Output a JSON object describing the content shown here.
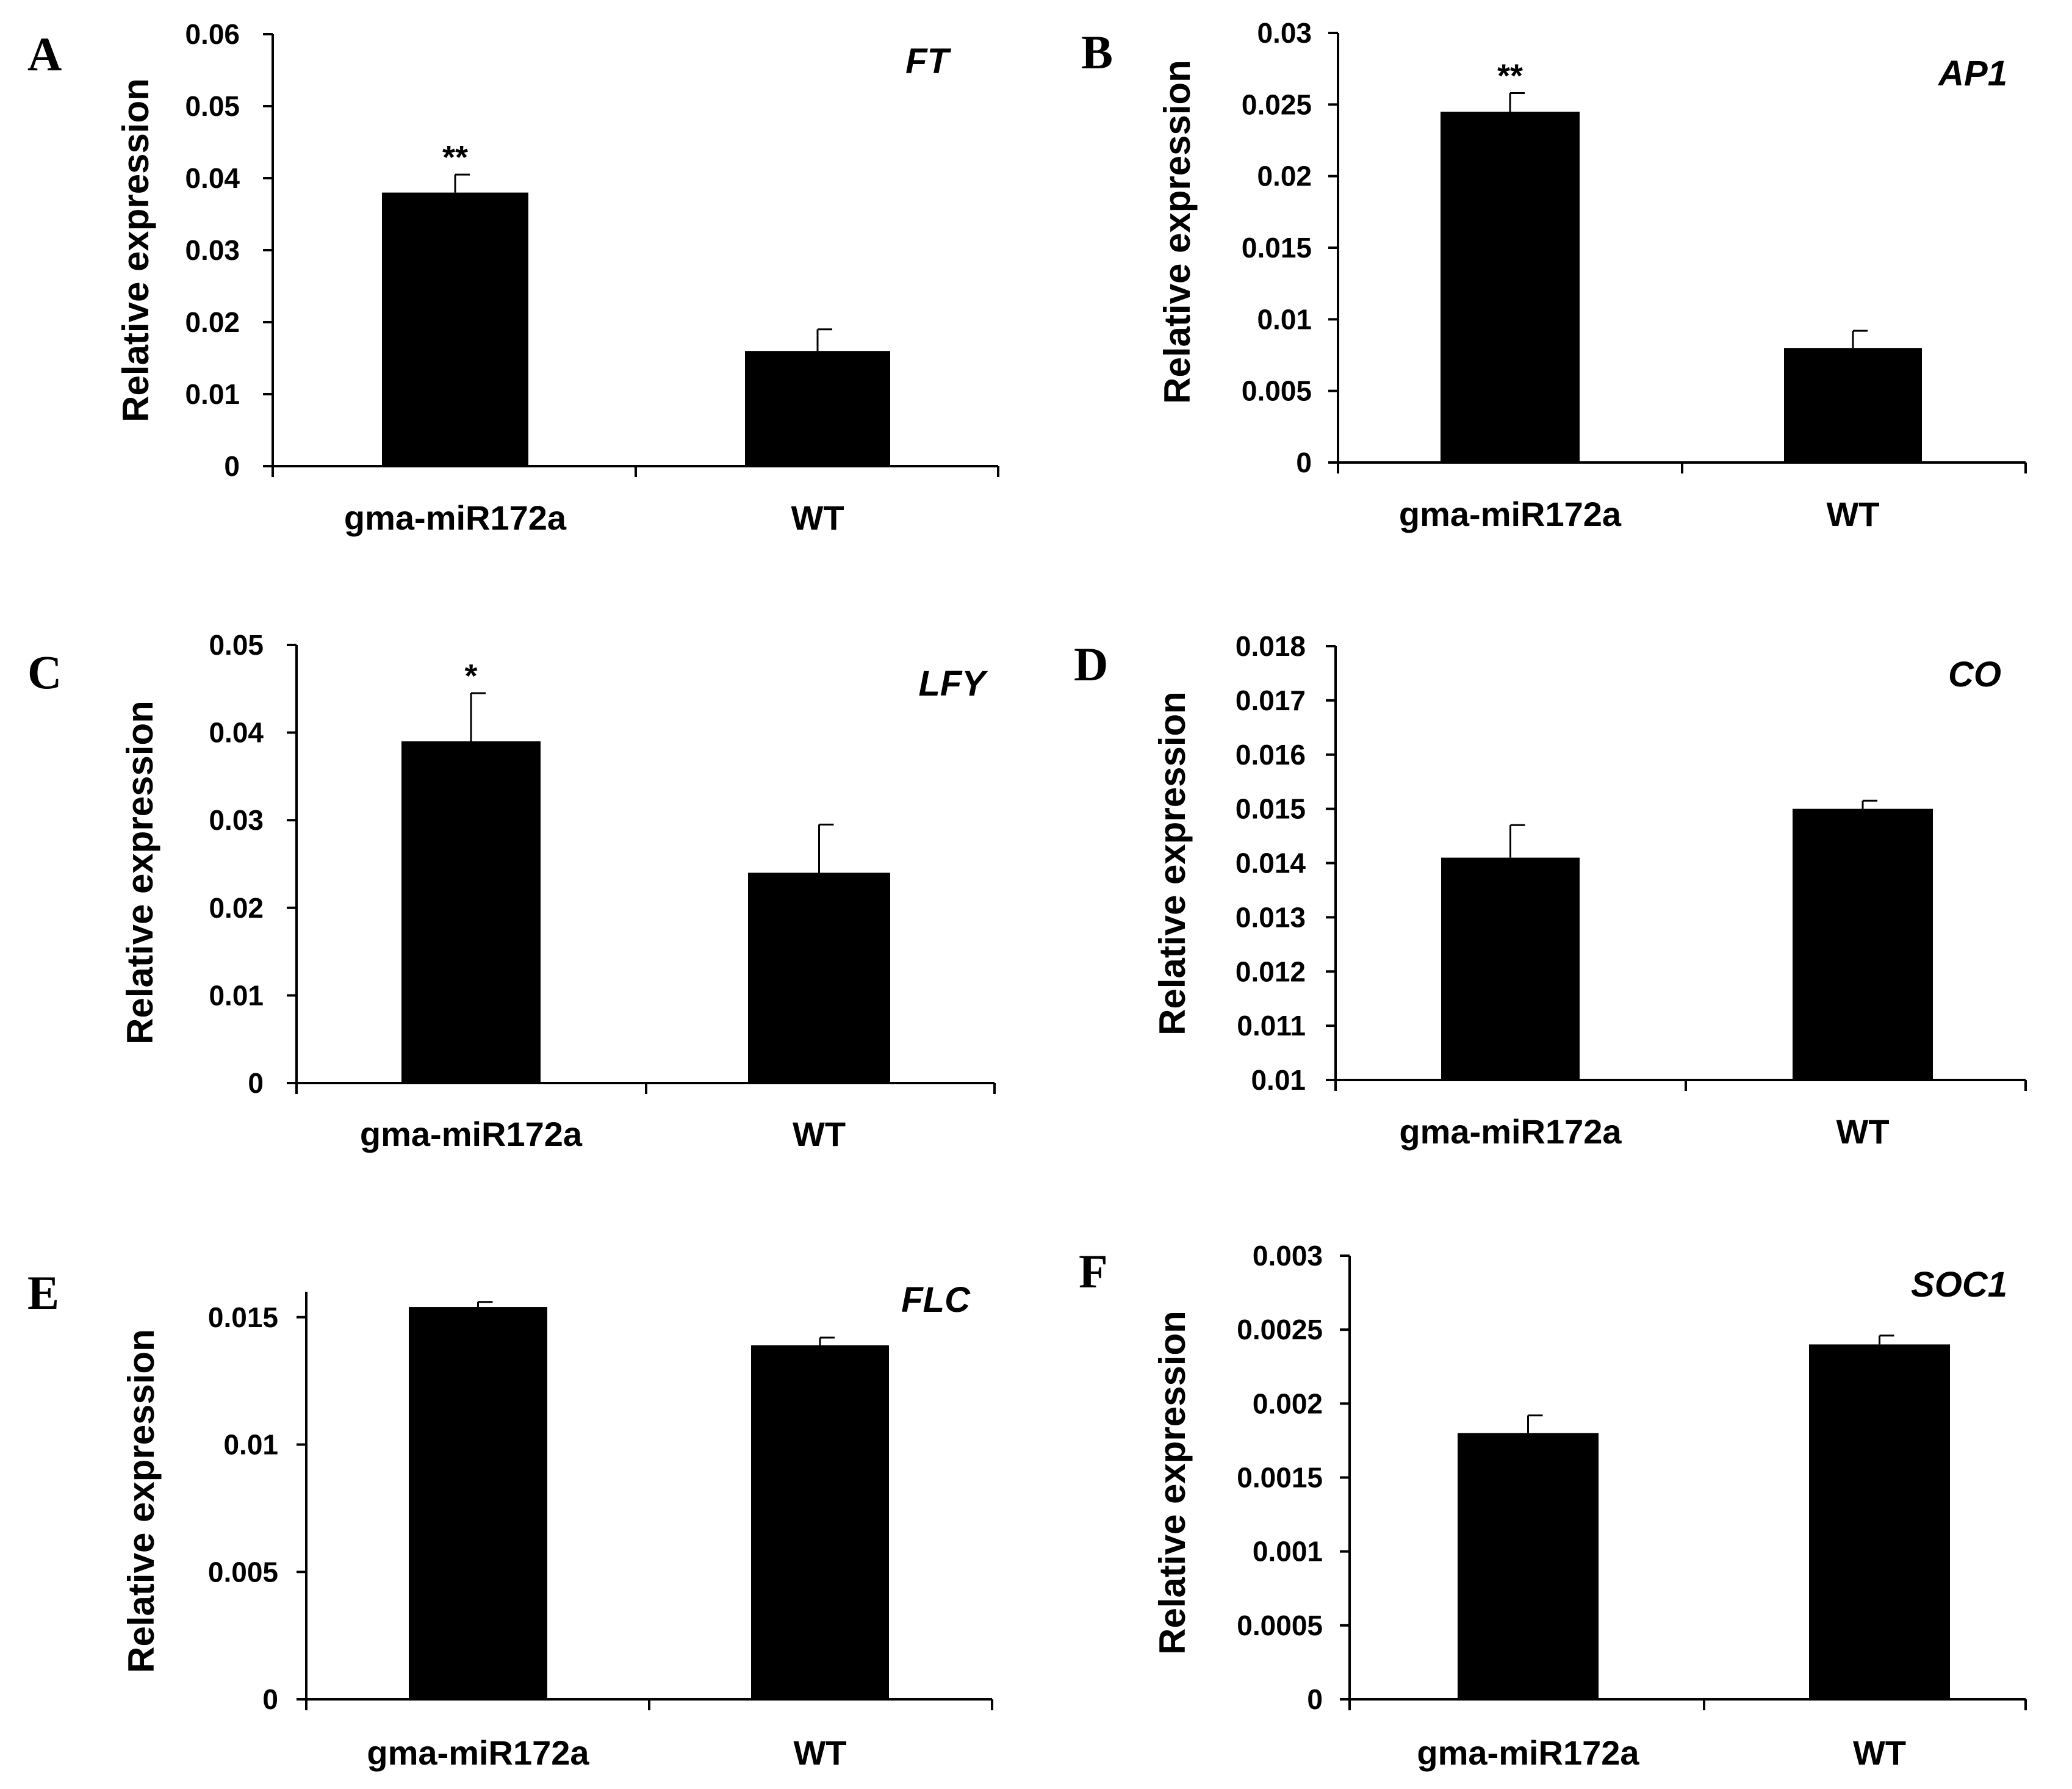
{
  "figure": {
    "background": "#ffffff",
    "bar_color": "#000000"
  },
  "chart_data": [
    {
      "panel": "A",
      "gene": "FT",
      "type": "bar",
      "categories": [
        "gma-miR172a",
        "WT"
      ],
      "values": [
        0.038,
        0.016
      ],
      "errors": [
        0.0025,
        0.003
      ],
      "significance": [
        "**",
        ""
      ],
      "ylabel": "Relative expression",
      "ylim": [
        0,
        0.06
      ],
      "yticks": [
        "0",
        "0.01",
        "0.02",
        "0.03",
        "0.04",
        "0.05",
        "0.06"
      ]
    },
    {
      "panel": "B",
      "gene": "AP1",
      "type": "bar",
      "categories": [
        "gma-miR172a",
        "WT"
      ],
      "values": [
        0.0245,
        0.008
      ],
      "errors": [
        0.0013,
        0.0012
      ],
      "significance": [
        "**",
        ""
      ],
      "ylabel": "Relative expression",
      "ylim": [
        0,
        0.03
      ],
      "yticks": [
        "0",
        "0.005",
        "0.01",
        "0.015",
        "0.02",
        "0.025",
        "0.03"
      ]
    },
    {
      "panel": "C",
      "gene": "LFY",
      "type": "bar",
      "categories": [
        "gma-miR172a",
        "WT"
      ],
      "values": [
        0.039,
        0.024
      ],
      "errors": [
        0.0055,
        0.0055
      ],
      "significance": [
        "*",
        ""
      ],
      "ylabel": "Relative expression",
      "ylim": [
        0,
        0.05
      ],
      "yticks": [
        "0",
        "0.01",
        "0.02",
        "0.03",
        "0.04",
        "0.05"
      ]
    },
    {
      "panel": "D",
      "gene": "CO",
      "type": "bar",
      "categories": [
        "gma-miR172a",
        "WT"
      ],
      "values": [
        0.0141,
        0.015
      ],
      "errors": [
        0.0006,
        0.00015
      ],
      "significance": [
        "",
        ""
      ],
      "ylabel": "Relative expression",
      "ylim": [
        0.01,
        0.018
      ],
      "yticks": [
        "0.01",
        "0.011",
        "0.012",
        "0.013",
        "0.014",
        "0.015",
        "0.016",
        "0.017",
        "0.018"
      ]
    },
    {
      "panel": "E",
      "gene": "FLC",
      "type": "bar",
      "categories": [
        "gma-miR172a",
        "WT"
      ],
      "values": [
        0.0154,
        0.0139
      ],
      "errors": [
        0.0002,
        0.0003
      ],
      "significance": [
        "",
        ""
      ],
      "ylabel": "Relative expression",
      "ylim": [
        0,
        0.016
      ],
      "yticks": [
        "0",
        "0.005",
        "0.01",
        "0.015"
      ]
    },
    {
      "panel": "F",
      "gene": "SOC1",
      "type": "bar",
      "categories": [
        "gma-miR172a",
        "WT"
      ],
      "values": [
        0.0018,
        0.0024
      ],
      "errors": [
        0.00012,
        6e-05
      ],
      "significance": [
        "",
        ""
      ],
      "ylabel": "Relative expression",
      "ylim": [
        0,
        0.003
      ],
      "yticks": [
        "0",
        "0.0005",
        "0.001",
        "0.0015",
        "0.002",
        "0.0025",
        "0.003"
      ]
    }
  ]
}
